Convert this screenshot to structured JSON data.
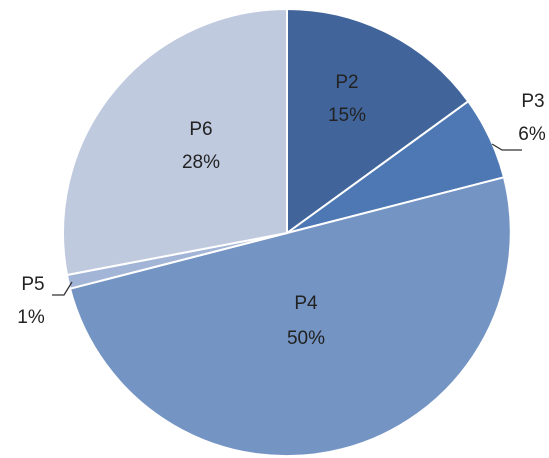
{
  "chart_data": {
    "type": "pie",
    "slices": [
      {
        "name": "P2",
        "value": 15,
        "label": "15%",
        "color": "#41659b"
      },
      {
        "name": "P3",
        "value": 6,
        "label": "6%",
        "color": "#4e78b4"
      },
      {
        "name": "P4",
        "value": 50,
        "label": "50%",
        "color": "#7494c4"
      },
      {
        "name": "P5",
        "value": 1,
        "label": "1%",
        "color": "#a3b5d7"
      },
      {
        "name": "P6",
        "value": 28,
        "label": "28%",
        "color": "#c0cadf"
      }
    ],
    "start_angle_deg": 0,
    "direction": "clockwise",
    "legend": "none"
  }
}
